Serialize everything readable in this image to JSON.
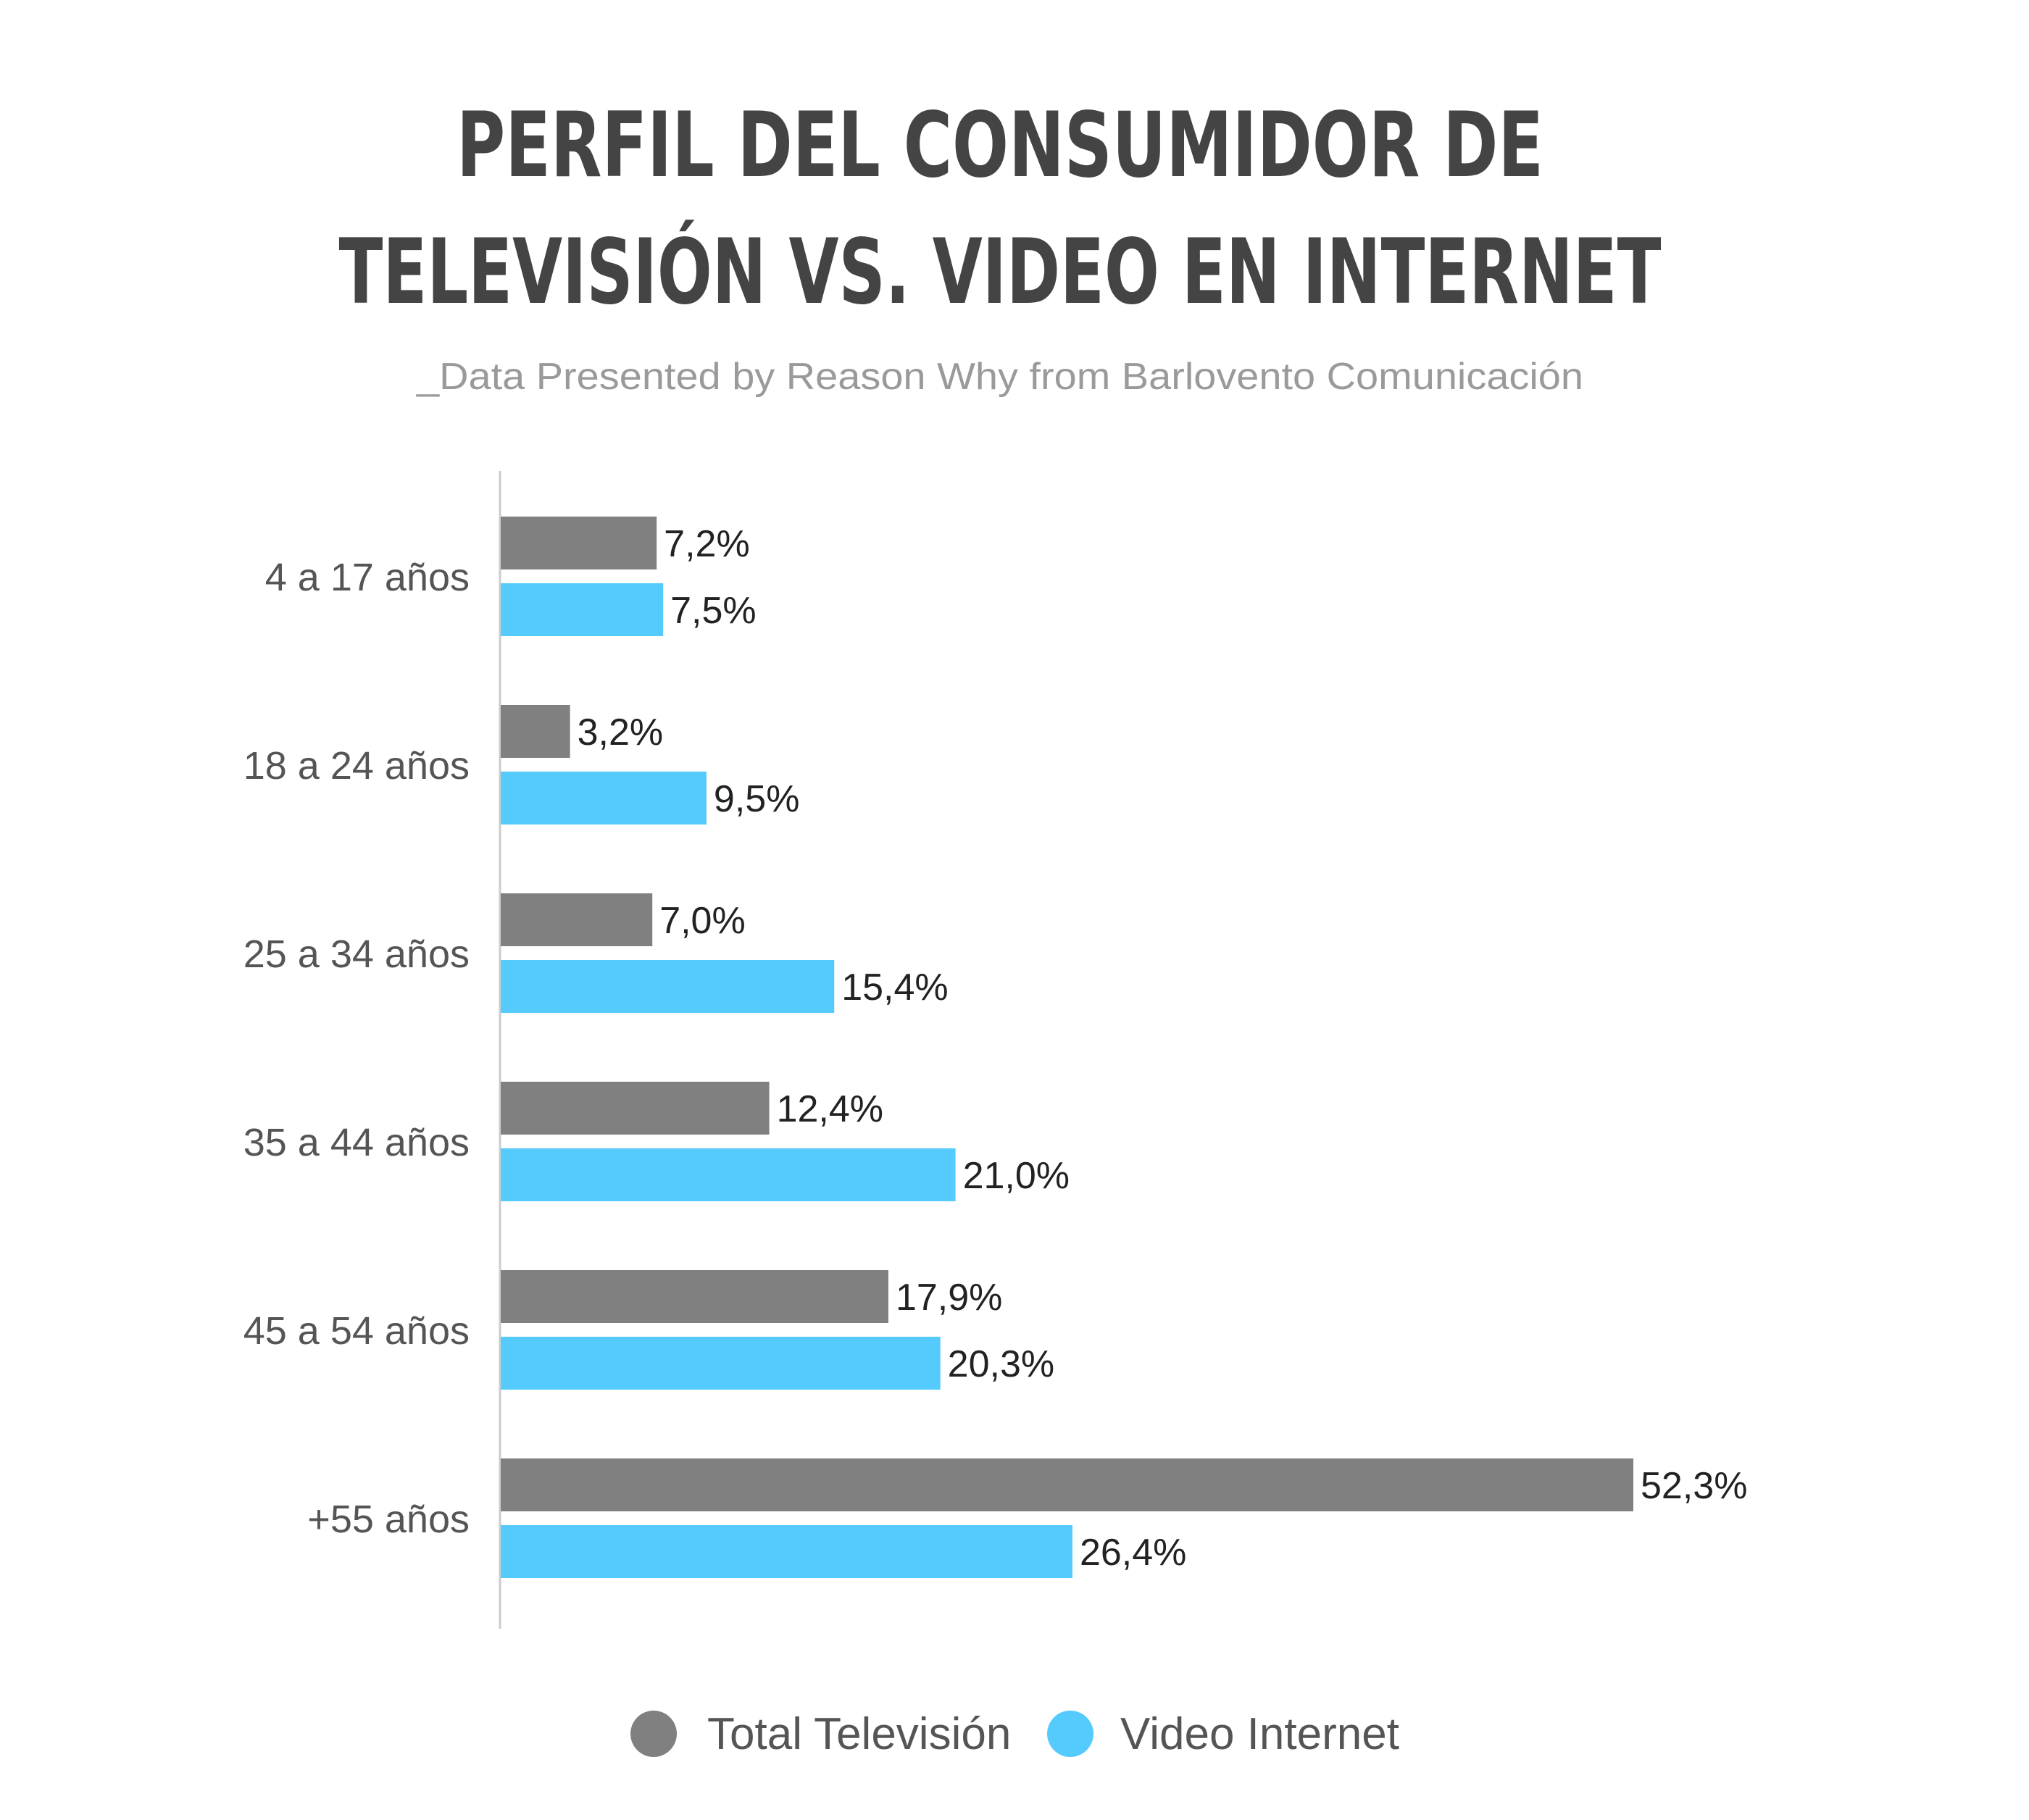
{
  "colors": {
    "series_tv": "#808080",
    "series_internet": "#55CAFC",
    "title": "#444444",
    "subtitle": "#9A9A9A",
    "axis": "#CCCCCC"
  },
  "chart_data": {
    "type": "bar",
    "orientation": "horizontal",
    "title_lines": [
      "PERFIL DEL CONSUMIDOR DE",
      "TELEVISIÓN VS. VIDEO EN INTERNET"
    ],
    "subtitle": "_Data Presented by Reason Why from Barlovento Comunicación",
    "categories": [
      "4 a 17 años",
      "18 a 24 años",
      "25 a 34 años",
      "35 a 44 años",
      "45 a 54 años",
      "+55 años"
    ],
    "series": [
      {
        "name": "Total Televisión",
        "color": "#808080",
        "values": [
          7.2,
          3.2,
          7.0,
          12.4,
          17.9,
          52.3
        ],
        "labels": [
          "7,2%",
          "3,2%",
          "7,0%",
          "12,4%",
          "17,9%",
          "52,3%"
        ]
      },
      {
        "name": "Video Internet",
        "color": "#55CAFC",
        "values": [
          7.5,
          9.5,
          15.4,
          21.0,
          20.3,
          26.4
        ],
        "labels": [
          "7,5%",
          "9,5%",
          "15,4%",
          "21,0%",
          "20,3%",
          "26,4%"
        ]
      }
    ],
    "xlim": [
      0,
      55
    ],
    "grid": false,
    "legend": "bottom-center"
  }
}
